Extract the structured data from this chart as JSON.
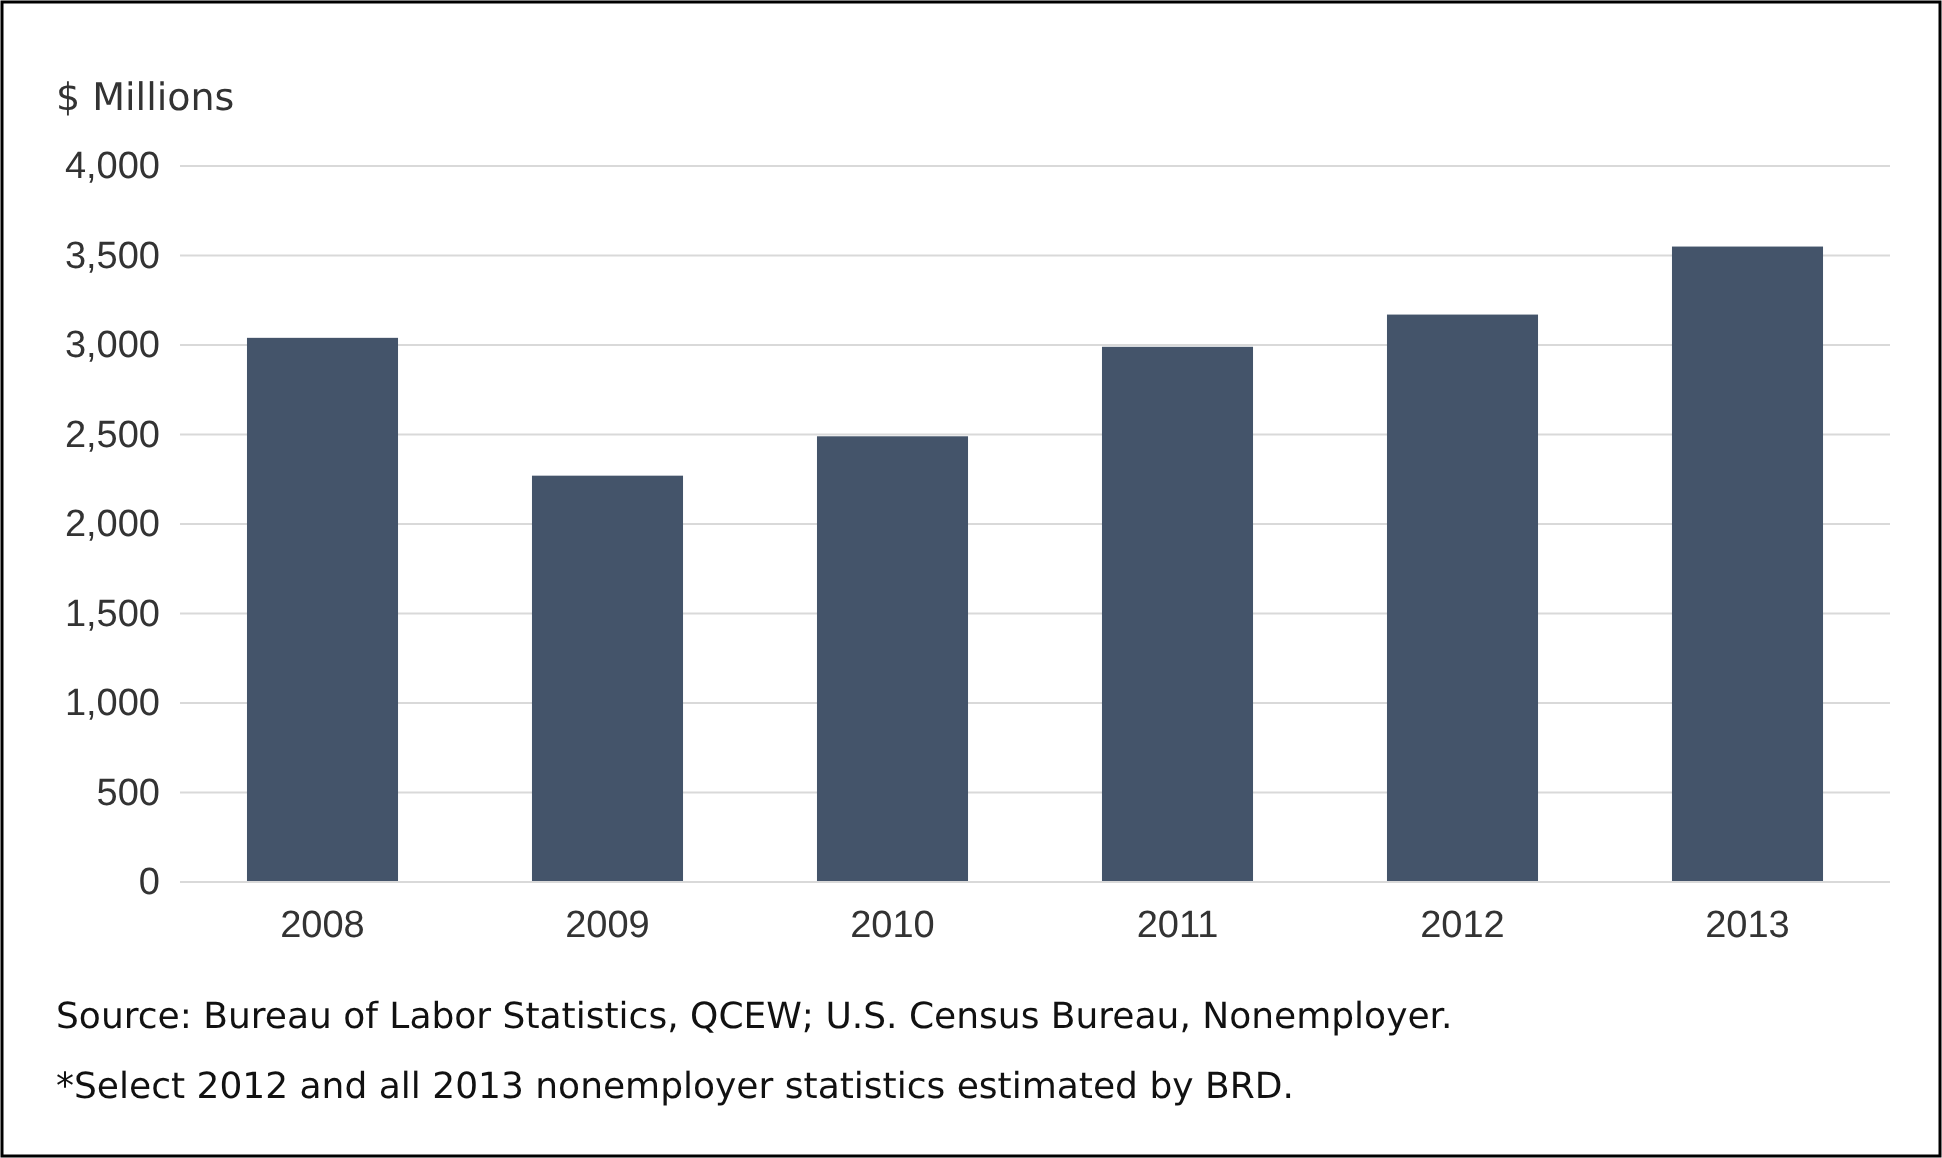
{
  "chart_data": {
    "type": "bar",
    "ylabel": "$ Millions",
    "categories": [
      "2008",
      "2009",
      "2010",
      "2011",
      "2012",
      "2013"
    ],
    "values": [
      3040,
      2270,
      2490,
      2990,
      3170,
      3550
    ],
    "color": "#44546a",
    "ylim": [
      0,
      4000
    ],
    "yticks": [
      {
        "value": 0,
        "label": "0"
      },
      {
        "value": 500,
        "label": "500"
      },
      {
        "value": 1000,
        "label": "1,000"
      },
      {
        "value": 1500,
        "label": "1,500"
      },
      {
        "value": 2000,
        "label": "2,000"
      },
      {
        "value": 2500,
        "label": "2,500"
      },
      {
        "value": 3000,
        "label": "3,000"
      },
      {
        "value": 3500,
        "label": "3,500"
      },
      {
        "value": 4000,
        "label": "4,000"
      }
    ],
    "grid": "y",
    "annotations": [
      "Source: Bureau of Labor Statistics, QCEW; U.S. Census Bureau, Nonemployer.",
      "*Select 2012 and all 2013 nonemployer statistics estimated by BRD."
    ]
  }
}
